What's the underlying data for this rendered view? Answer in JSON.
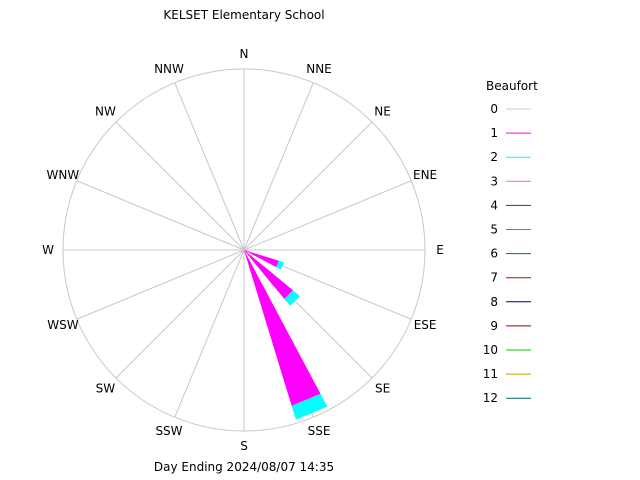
{
  "title": "KELSET Elementary School",
  "footer": "Day Ending 2024/08/07 14:35",
  "chart_data": {
    "type": "wind_rose",
    "title": "KELSET Elementary School",
    "footer": "Day Ending 2024/08/07 14:35",
    "directions": [
      "N",
      "NNE",
      "NE",
      "ENE",
      "E",
      "ESE",
      "SE",
      "SSE",
      "S",
      "SSW",
      "SW",
      "WSW",
      "W",
      "WNW",
      "NW",
      "NNW"
    ],
    "legend_title": "Beaufort",
    "legend_placement": "right",
    "legend": [
      {
        "label": "0",
        "color": "#c8c8c8"
      },
      {
        "label": "1",
        "color": "#ff00ff"
      },
      {
        "label": "2",
        "color": "#00ffff"
      },
      {
        "label": "3",
        "color": "#ff66cc"
      },
      {
        "label": "4",
        "color": "#990099"
      },
      {
        "label": "5",
        "color": "#cc6600"
      },
      {
        "label": "6",
        "color": "#006699"
      },
      {
        "label": "7",
        "color": "#cc0000"
      },
      {
        "label": "8",
        "color": "#000066"
      },
      {
        "label": "9",
        "color": "#990000"
      },
      {
        "label": "10",
        "color": "#00cc00"
      },
      {
        "label": "11",
        "color": "#cc9900"
      },
      {
        "label": "12",
        "color": "#006666"
      }
    ],
    "series": [
      {
        "direction": "ESE",
        "values": [
          0,
          0.2,
          0.03
        ]
      },
      {
        "direction": "SE",
        "values": [
          0,
          0.26,
          0.05
        ]
      },
      {
        "direction": "SE",
        "values": [
          0,
          0.35,
          0.05
        ]
      },
      {
        "direction": "SSE",
        "values": [
          0,
          0.9,
          0.08
        ]
      }
    ]
  }
}
